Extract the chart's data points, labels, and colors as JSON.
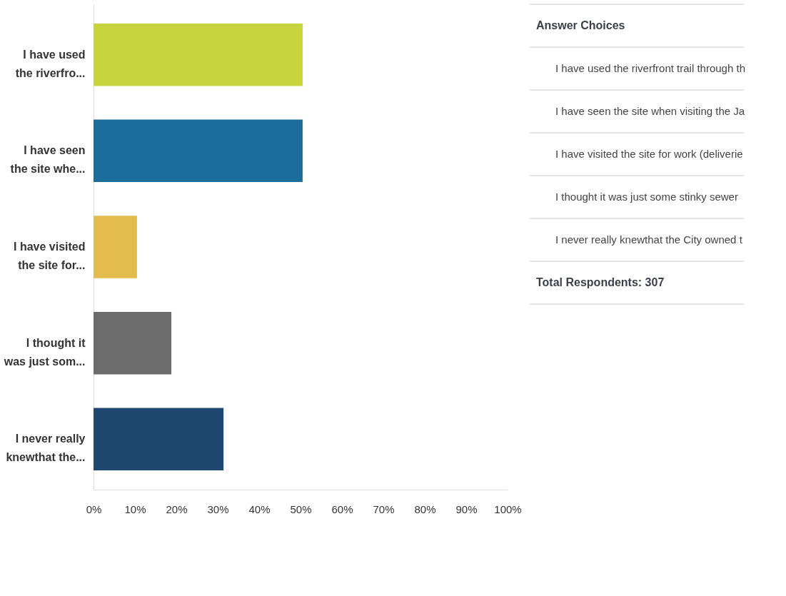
{
  "chart_data": [
    {
      "type": "bar",
      "orientation": "horizontal",
      "categories": [
        "I have used the riverfro...",
        "I have seen the site whe...",
        "I have visited the site for...",
        "I thought it was just som...",
        "I never really knewthat the..."
      ],
      "values": [
        50.5,
        50.5,
        10.5,
        18.8,
        31.4
      ],
      "colors": [
        "#c8d43c",
        "#1b6e9c",
        "#e4bc4e",
        "#6b6c6b",
        "#1f4870"
      ],
      "xlim": [
        0,
        100
      ],
      "xticks": [
        {
          "value": 0,
          "label": "0%"
        },
        {
          "value": 10,
          "label": "10%"
        },
        {
          "value": 20,
          "label": "20%"
        },
        {
          "value": 30,
          "label": "30%"
        },
        {
          "value": 40,
          "label": "40%"
        },
        {
          "value": 50,
          "label": "50%"
        },
        {
          "value": 60,
          "label": "60%"
        },
        {
          "value": 70,
          "label": "70%"
        },
        {
          "value": 80,
          "label": "80%"
        },
        {
          "value": 90,
          "label": "90%"
        },
        {
          "value": 100,
          "label": "100%"
        }
      ],
      "grid": false
    },
    {
      "type": "other",
      "annotations": [
        "Answer Choices",
        "I have used the riverfront trail through th",
        "I have seen the site when visiting the Ja",
        "I have visited the site for work (deliverie",
        "I thought it was just some stinky sewer",
        "I never really knewthat the City owned t",
        "Total Respondents: 307"
      ]
    }
  ]
}
